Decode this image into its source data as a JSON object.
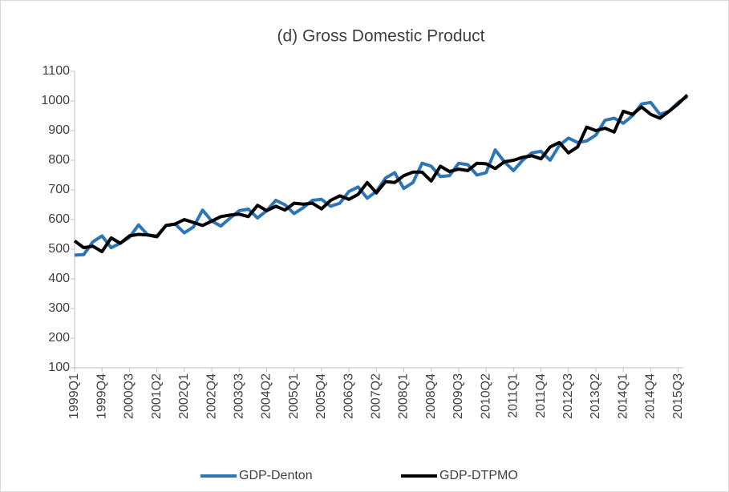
{
  "chart_data": {
    "type": "line",
    "title": "(d) Gross Domestic Product",
    "categories": [
      "1999Q1",
      null,
      null,
      "1999Q4",
      null,
      null,
      "2000Q3",
      null,
      null,
      "2001Q2",
      null,
      null,
      "2002Q1",
      null,
      null,
      "2002Q4",
      null,
      null,
      "2003Q3",
      null,
      null,
      "2004Q2",
      null,
      null,
      "2005Q1",
      null,
      null,
      "2005Q4",
      null,
      null,
      "2006Q3",
      null,
      null,
      "2007Q2",
      null,
      null,
      "2008Q1",
      null,
      null,
      "2008Q4",
      null,
      null,
      "2009Q3",
      null,
      null,
      "2010Q2",
      null,
      null,
      "2011Q1",
      null,
      null,
      "2011Q4",
      null,
      null,
      "2012Q3",
      null,
      null,
      "2013Q2",
      null,
      null,
      "2014Q1",
      null,
      null,
      "2014Q4",
      null,
      null,
      "2015Q3",
      null
    ],
    "series": [
      {
        "name": "GDP-Denton",
        "color": "#2e75b6",
        "values": [
          480,
          482,
          525,
          545,
          505,
          520,
          540,
          582,
          548,
          545,
          580,
          585,
          555,
          575,
          632,
          595,
          578,
          605,
          630,
          635,
          605,
          630,
          665,
          650,
          620,
          640,
          665,
          668,
          645,
          655,
          695,
          710,
          672,
          695,
          740,
          758,
          705,
          725,
          790,
          780,
          745,
          748,
          790,
          785,
          750,
          758,
          835,
          795,
          765,
          800,
          825,
          830,
          800,
          850,
          875,
          860,
          865,
          885,
          935,
          942,
          925,
          950,
          990,
          995,
          955,
          965,
          995,
          1015
        ]
      },
      {
        "name": "GDP-DTPMO",
        "color": "#000000",
        "values": [
          528,
          505,
          510,
          492,
          538,
          520,
          545,
          550,
          548,
          542,
          580,
          585,
          600,
          590,
          580,
          595,
          610,
          615,
          618,
          610,
          648,
          630,
          645,
          632,
          655,
          652,
          655,
          636,
          665,
          680,
          668,
          685,
          725,
          690,
          728,
          725,
          748,
          760,
          760,
          730,
          780,
          762,
          770,
          765,
          790,
          788,
          772,
          795,
          800,
          810,
          815,
          805,
          845,
          860,
          825,
          845,
          912,
          900,
          908,
          895,
          965,
          955,
          980,
          955,
          942,
          965,
          990,
          1020
        ]
      }
    ],
    "ylim": [
      100,
      1100
    ],
    "yticks": [
      100,
      200,
      300,
      400,
      500,
      600,
      700,
      800,
      900,
      1000,
      1100
    ]
  }
}
